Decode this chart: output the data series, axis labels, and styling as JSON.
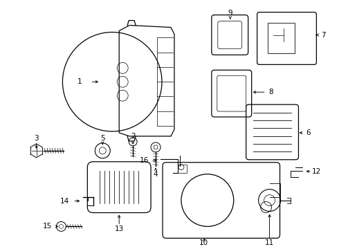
{
  "background_color": "#ffffff",
  "line_color": "#000000",
  "figsize": [
    4.9,
    3.6
  ],
  "dpi": 100
}
